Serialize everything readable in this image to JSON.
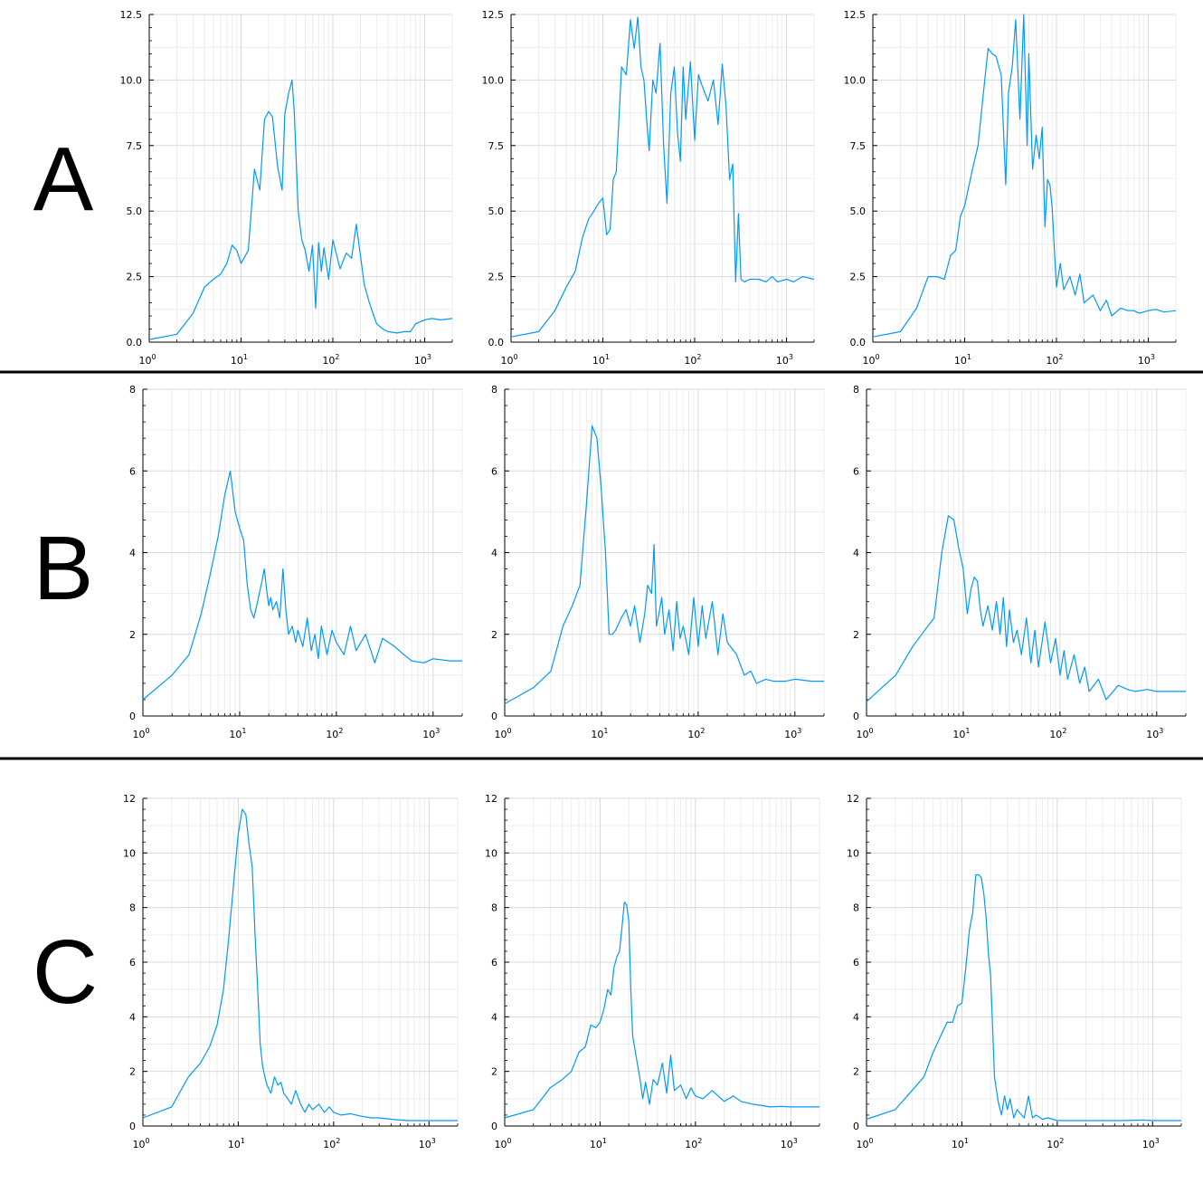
{
  "rows": [
    {
      "label": "A"
    },
    {
      "label": "B"
    },
    {
      "label": "C"
    }
  ],
  "colors": {
    "series": "#009AF9",
    "grid_major": "#d9d9d9",
    "grid_minor": "#ededed",
    "axis": "#000000",
    "divider": "#000000"
  },
  "chart_data": [
    {
      "type": "line",
      "row": "A",
      "col": 1,
      "xscale": "log10",
      "xlim": [
        1,
        2000
      ],
      "ylim": [
        0,
        12.5
      ],
      "yticks": [
        "0.0",
        "2.5",
        "5.0",
        "7.5",
        "10.0",
        "12.5"
      ],
      "ytick_values": [
        0,
        2.5,
        5,
        7.5,
        10,
        12.5
      ],
      "xticks": [
        "1",
        "10",
        "100",
        "1000"
      ],
      "grid": true,
      "x": [
        1,
        2,
        3,
        4,
        5,
        6,
        7,
        8,
        9,
        10,
        12,
        14,
        16,
        18,
        20,
        22,
        25,
        28,
        30,
        33,
        36,
        38,
        42,
        46,
        50,
        55,
        60,
        65,
        70,
        75,
        80,
        90,
        100,
        120,
        140,
        160,
        180,
        200,
        220,
        250,
        280,
        300,
        350,
        400,
        500,
        600,
        700,
        800,
        1000,
        1200,
        1500,
        2000
      ],
      "y": [
        0.1,
        0.3,
        1.1,
        2.1,
        2.4,
        2.6,
        3.0,
        3.7,
        3.5,
        3.0,
        3.5,
        6.6,
        5.8,
        8.5,
        8.8,
        8.6,
        6.7,
        5.8,
        8.7,
        9.5,
        10.0,
        8.8,
        5.0,
        3.9,
        3.5,
        2.7,
        3.7,
        1.3,
        3.8,
        2.7,
        3.6,
        2.4,
        3.9,
        2.8,
        3.4,
        3.2,
        4.5,
        3.3,
        2.2,
        1.5,
        1.0,
        0.7,
        0.5,
        0.4,
        0.35,
        0.4,
        0.4,
        0.7,
        0.85,
        0.9,
        0.85,
        0.9
      ]
    },
    {
      "type": "line",
      "row": "A",
      "col": 2,
      "xscale": "log10",
      "xlim": [
        1,
        2000
      ],
      "ylim": [
        0,
        12.5
      ],
      "yticks": [
        "0.0",
        "2.5",
        "5.0",
        "7.5",
        "10.0",
        "12.5"
      ],
      "ytick_values": [
        0,
        2.5,
        5,
        7.5,
        10,
        12.5
      ],
      "xticks": [
        "1",
        "10",
        "100",
        "1000"
      ],
      "grid": true,
      "x": [
        1,
        2,
        3,
        4,
        5,
        6,
        7,
        8,
        9,
        10,
        11,
        12,
        13,
        14,
        16,
        18,
        20,
        22,
        24,
        26,
        28,
        30,
        32,
        35,
        38,
        42,
        46,
        50,
        55,
        60,
        65,
        70,
        75,
        80,
        90,
        100,
        110,
        120,
        140,
        160,
        180,
        200,
        220,
        240,
        260,
        280,
        300,
        320,
        350,
        400,
        500,
        600,
        700,
        800,
        1000,
        1200,
        1500,
        2000
      ],
      "y": [
        0.2,
        0.4,
        1.2,
        2.1,
        2.7,
        4.0,
        4.7,
        5.0,
        5.3,
        5.5,
        4.1,
        4.3,
        6.2,
        6.5,
        10.5,
        10.2,
        12.3,
        11.2,
        12.4,
        10.5,
        10.0,
        8.5,
        7.3,
        10.0,
        9.5,
        11.4,
        7.5,
        5.3,
        9.5,
        10.5,
        8.0,
        6.9,
        10.5,
        8.5,
        10.7,
        7.7,
        10.2,
        9.8,
        9.2,
        10.0,
        8.3,
        10.6,
        9.0,
        6.2,
        6.8,
        2.3,
        4.9,
        2.4,
        2.3,
        2.4,
        2.4,
        2.3,
        2.5,
        2.3,
        2.4,
        2.3,
        2.5,
        2.4
      ]
    },
    {
      "type": "line",
      "row": "A",
      "col": 3,
      "xscale": "log10",
      "xlim": [
        1,
        2000
      ],
      "ylim": [
        0,
        12.5
      ],
      "yticks": [
        "0.0",
        "2.5",
        "5.0",
        "7.5",
        "10.0",
        "12.5"
      ],
      "ytick_values": [
        0,
        2.5,
        5,
        7.5,
        10,
        12.5
      ],
      "xticks": [
        "1",
        "10",
        "100",
        "1000"
      ],
      "grid": true,
      "x": [
        1,
        2,
        3,
        4,
        5,
        6,
        7,
        8,
        9,
        10,
        12,
        14,
        16,
        18,
        20,
        22,
        25,
        28,
        30,
        33,
        36,
        40,
        44,
        48,
        50,
        55,
        60,
        65,
        70,
        75,
        80,
        85,
        90,
        95,
        100,
        110,
        120,
        140,
        160,
        180,
        200,
        250,
        300,
        350,
        400,
        500,
        600,
        700,
        800,
        1000,
        1200,
        1500,
        2000
      ],
      "y": [
        0.2,
        0.4,
        1.3,
        2.5,
        2.5,
        2.4,
        3.3,
        3.5,
        4.8,
        5.2,
        6.5,
        7.5,
        9.5,
        11.2,
        11.0,
        10.9,
        10.2,
        6.0,
        9.5,
        10.5,
        12.3,
        8.5,
        12.5,
        7.5,
        11.0,
        6.6,
        7.9,
        7.0,
        8.2,
        4.4,
        6.2,
        6.0,
        5.1,
        3.5,
        2.1,
        3.0,
        2.0,
        2.5,
        1.8,
        2.6,
        1.5,
        1.8,
        1.2,
        1.6,
        1.0,
        1.3,
        1.2,
        1.2,
        1.1,
        1.2,
        1.25,
        1.15,
        1.2
      ]
    },
    {
      "type": "line",
      "row": "B",
      "col": 1,
      "xscale": "log10",
      "xlim": [
        1,
        2000
      ],
      "ylim": [
        0,
        8
      ],
      "yticks": [
        "0",
        "2",
        "4",
        "6",
        "8"
      ],
      "ytick_values": [
        0,
        2,
        4,
        6,
        8
      ],
      "xticks": [
        "1",
        "10",
        "100",
        "1000"
      ],
      "grid": true,
      "x": [
        1,
        2,
        3,
        4,
        5,
        6,
        7,
        8,
        9,
        10,
        11,
        12,
        13,
        14,
        15,
        17,
        18,
        19,
        20,
        21,
        22,
        24,
        26,
        28,
        30,
        32,
        35,
        38,
        40,
        45,
        50,
        55,
        60,
        65,
        70,
        80,
        90,
        100,
        120,
        140,
        160,
        200,
        250,
        300,
        400,
        500,
        600,
        800,
        1000,
        1500,
        2000
      ],
      "y": [
        0.4,
        1.0,
        1.5,
        2.5,
        3.5,
        4.4,
        5.4,
        6.0,
        5.0,
        4.6,
        4.3,
        3.2,
        2.6,
        2.4,
        2.7,
        3.3,
        3.6,
        3.1,
        2.7,
        2.9,
        2.6,
        2.8,
        2.4,
        3.6,
        2.6,
        2.0,
        2.2,
        1.8,
        2.1,
        1.7,
        2.4,
        1.6,
        2.0,
        1.4,
        2.2,
        1.5,
        2.1,
        1.8,
        1.5,
        2.2,
        1.6,
        2.0,
        1.3,
        1.9,
        1.7,
        1.5,
        1.35,
        1.3,
        1.4,
        1.35,
        1.35
      ]
    },
    {
      "type": "line",
      "row": "B",
      "col": 2,
      "xscale": "log10",
      "xlim": [
        1,
        2000
      ],
      "ylim": [
        0,
        8
      ],
      "yticks": [
        "0",
        "2",
        "4",
        "6",
        "8"
      ],
      "ytick_values": [
        0,
        2,
        4,
        6,
        8
      ],
      "xticks": [
        "1",
        "10",
        "100",
        "1000"
      ],
      "grid": true,
      "x": [
        1,
        2,
        3,
        4,
        5,
        6,
        7,
        8,
        9,
        10,
        11,
        12,
        13,
        14,
        16,
        18,
        20,
        22,
        25,
        28,
        30,
        33,
        35,
        37,
        40,
        42,
        45,
        50,
        55,
        60,
        65,
        70,
        80,
        90,
        100,
        110,
        120,
        140,
        160,
        180,
        200,
        250,
        300,
        350,
        400,
        500,
        600,
        800,
        1000,
        1500,
        2000
      ],
      "y": [
        0.3,
        0.7,
        1.1,
        2.2,
        2.7,
        3.2,
        5.2,
        7.1,
        6.8,
        5.5,
        4.0,
        2.0,
        2.0,
        2.1,
        2.4,
        2.6,
        2.2,
        2.7,
        1.8,
        2.5,
        3.2,
        3.0,
        4.2,
        2.2,
        2.6,
        2.9,
        2.0,
        2.6,
        1.6,
        2.8,
        1.9,
        2.2,
        1.5,
        2.9,
        1.7,
        2.7,
        1.9,
        2.8,
        1.5,
        2.5,
        1.8,
        1.5,
        1.0,
        1.1,
        0.8,
        0.9,
        0.85,
        0.85,
        0.9,
        0.85,
        0.85
      ]
    },
    {
      "type": "line",
      "row": "B",
      "col": 3,
      "xscale": "log10",
      "xlim": [
        1,
        2000
      ],
      "ylim": [
        0,
        8
      ],
      "yticks": [
        "0",
        "2",
        "4",
        "6",
        "8"
      ],
      "ytick_values": [
        0,
        2,
        4,
        6,
        8
      ],
      "xticks": [
        "1",
        "10",
        "100",
        "1000"
      ],
      "grid": true,
      "x": [
        1,
        2,
        3,
        4,
        5,
        6,
        7,
        8,
        9,
        10,
        11,
        12,
        13,
        14,
        15,
        16,
        18,
        20,
        22,
        24,
        26,
        28,
        30,
        33,
        36,
        40,
        45,
        50,
        55,
        60,
        70,
        80,
        90,
        100,
        110,
        120,
        140,
        160,
        180,
        200,
        250,
        300,
        400,
        500,
        600,
        800,
        1000,
        1500,
        2000
      ],
      "y": [
        0.35,
        1.0,
        1.7,
        2.1,
        2.4,
        4.0,
        4.9,
        4.8,
        4.1,
        3.6,
        2.5,
        3.1,
        3.4,
        3.3,
        2.6,
        2.2,
        2.7,
        2.1,
        2.8,
        2.0,
        2.9,
        1.7,
        2.6,
        1.8,
        2.1,
        1.5,
        2.4,
        1.3,
        2.1,
        1.2,
        2.3,
        1.3,
        1.9,
        1.0,
        1.6,
        0.9,
        1.5,
        0.8,
        1.2,
        0.6,
        0.9,
        0.4,
        0.75,
        0.65,
        0.6,
        0.65,
        0.6,
        0.6,
        0.6
      ]
    },
    {
      "type": "line",
      "row": "C",
      "col": 1,
      "xscale": "log10",
      "xlim": [
        1,
        2000
      ],
      "ylim": [
        0,
        12
      ],
      "yticks": [
        "0",
        "2",
        "4",
        "6",
        "8",
        "10",
        "12"
      ],
      "ytick_values": [
        0,
        2,
        4,
        6,
        8,
        10,
        12
      ],
      "xticks": [
        "1",
        "10",
        "100",
        "1000"
      ],
      "grid": true,
      "x": [
        1,
        2,
        3,
        4,
        5,
        6,
        7,
        8,
        9,
        10,
        11,
        12,
        13,
        14,
        15,
        16,
        17,
        18,
        19,
        20,
        22,
        24,
        26,
        28,
        30,
        33,
        36,
        40,
        45,
        50,
        55,
        60,
        70,
        80,
        90,
        100,
        120,
        150,
        200,
        250,
        300,
        400,
        500,
        600,
        800,
        1000,
        1500,
        2000
      ],
      "y": [
        0.3,
        0.7,
        1.8,
        2.3,
        2.9,
        3.7,
        5.0,
        7.0,
        9.0,
        10.7,
        11.6,
        11.4,
        10.3,
        9.5,
        7.0,
        5.0,
        3.0,
        2.2,
        1.8,
        1.5,
        1.2,
        1.8,
        1.5,
        1.6,
        1.2,
        1.0,
        0.8,
        1.3,
        0.8,
        0.5,
        0.8,
        0.6,
        0.8,
        0.5,
        0.7,
        0.5,
        0.4,
        0.45,
        0.35,
        0.3,
        0.3,
        0.25,
        0.22,
        0.2,
        0.2,
        0.2,
        0.2,
        0.2
      ]
    },
    {
      "type": "line",
      "row": "C",
      "col": 2,
      "xscale": "log10",
      "xlim": [
        1,
        2000
      ],
      "ylim": [
        0,
        12
      ],
      "yticks": [
        "0",
        "2",
        "4",
        "6",
        "8",
        "10",
        "12"
      ],
      "ytick_values": [
        0,
        2,
        4,
        6,
        8,
        10,
        12
      ],
      "xticks": [
        "1",
        "10",
        "100",
        "1000"
      ],
      "grid": true,
      "x": [
        1,
        2,
        3,
        4,
        5,
        6,
        7,
        8,
        9,
        10,
        11,
        12,
        13,
        14,
        15,
        16,
        17,
        18,
        19,
        20,
        21,
        22,
        24,
        26,
        28,
        30,
        33,
        36,
        40,
        45,
        50,
        55,
        60,
        70,
        80,
        90,
        100,
        120,
        150,
        200,
        250,
        300,
        400,
        500,
        600,
        800,
        1000,
        1500,
        2000
      ],
      "y": [
        0.3,
        0.6,
        1.4,
        1.7,
        2.0,
        2.7,
        2.9,
        3.7,
        3.6,
        3.8,
        4.3,
        5.0,
        4.8,
        5.8,
        6.2,
        6.4,
        7.3,
        8.2,
        8.1,
        7.5,
        5.0,
        3.3,
        2.5,
        1.8,
        1.0,
        1.6,
        0.8,
        1.7,
        1.5,
        2.3,
        1.2,
        2.6,
        1.3,
        1.5,
        1.0,
        1.4,
        1.1,
        1.0,
        1.3,
        0.9,
        1.1,
        0.9,
        0.8,
        0.75,
        0.7,
        0.72,
        0.7,
        0.7,
        0.7
      ]
    },
    {
      "type": "line",
      "row": "C",
      "col": 3,
      "xscale": "log10",
      "xlim": [
        1,
        2000
      ],
      "ylim": [
        0,
        12
      ],
      "yticks": [
        "0",
        "2",
        "4",
        "6",
        "8",
        "10",
        "12"
      ],
      "ytick_values": [
        0,
        2,
        4,
        6,
        8,
        10,
        12
      ],
      "xticks": [
        "1",
        "10",
        "100",
        "1000"
      ],
      "grid": true,
      "x": [
        1,
        2,
        3,
        4,
        5,
        6,
        7,
        8,
        9,
        10,
        11,
        12,
        13,
        14,
        15,
        16,
        17,
        18,
        19,
        20,
        22,
        24,
        26,
        28,
        30,
        32,
        35,
        38,
        40,
        45,
        50,
        55,
        60,
        70,
        80,
        100,
        150,
        200,
        300,
        500,
        800,
        1000,
        1500,
        2000
      ],
      "y": [
        0.25,
        0.6,
        1.3,
        1.8,
        2.7,
        3.3,
        3.8,
        3.8,
        4.4,
        4.5,
        5.8,
        7.2,
        7.8,
        9.2,
        9.2,
        9.1,
        8.5,
        7.6,
        6.3,
        5.5,
        1.8,
        0.9,
        0.4,
        1.1,
        0.6,
        1.0,
        0.3,
        0.6,
        0.5,
        0.3,
        1.1,
        0.3,
        0.4,
        0.25,
        0.3,
        0.2,
        0.2,
        0.2,
        0.2,
        0.2,
        0.22,
        0.2,
        0.2,
        0.2
      ]
    }
  ]
}
